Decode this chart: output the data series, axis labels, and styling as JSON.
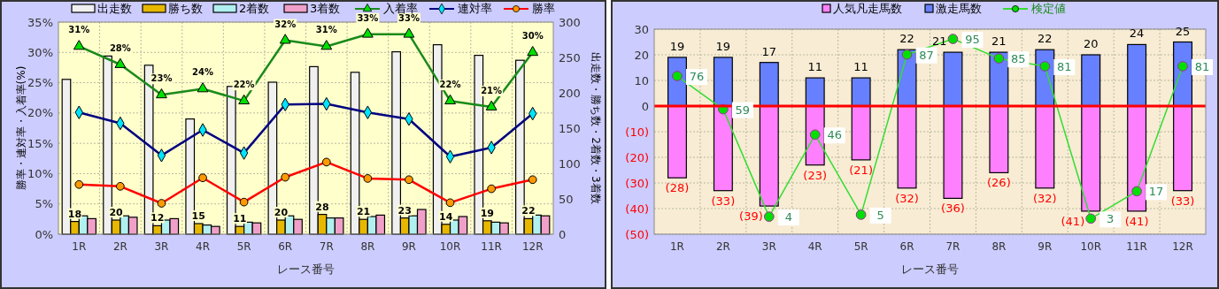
{
  "chart_data": [
    {
      "type": "bar",
      "categories": [
        "1R",
        "2R",
        "3R",
        "4R",
        "5R",
        "6R",
        "7R",
        "8R",
        "9R",
        "10R",
        "11R",
        "12R"
      ],
      "xlabel": "レース番号",
      "ylabel": "勝率・連対率・入着率(%)",
      "y2label": "出走数・勝ち数・2着数・3着数",
      "ylim": [
        0,
        35
      ],
      "yticks": [
        {
          "value": 0,
          "label": "0%"
        },
        {
          "value": 5,
          "label": "5%"
        },
        {
          "value": 10,
          "label": "10%"
        },
        {
          "value": 15,
          "label": "15%"
        },
        {
          "value": 20,
          "label": "20%"
        },
        {
          "value": 25,
          "label": "25%"
        },
        {
          "value": 30,
          "label": "30%"
        },
        {
          "value": 35,
          "label": "35%"
        }
      ],
      "y2lim": [
        0,
        300
      ],
      "y2ticks": [
        0,
        50,
        100,
        150,
        200,
        250,
        300
      ],
      "grid": true,
      "legend": "top",
      "series": [
        {
          "name": "出走数",
          "axis": "y2",
          "color": "#f0f0f0",
          "values": [
            219,
            252,
            239,
            163,
            209,
            215,
            237,
            229,
            258,
            268,
            253,
            246
          ]
        },
        {
          "name": "勝ち数",
          "axis": "y2",
          "color": "#e8b800",
          "values": [
            18,
            20,
            12,
            15,
            11,
            20,
            28,
            21,
            23,
            14,
            19,
            22
          ],
          "value_labels": [
            "18",
            "20",
            "12",
            "15",
            "11",
            "20",
            "28",
            "21",
            "23",
            "14",
            "19",
            "22"
          ]
        },
        {
          "name": "2着数",
          "axis": "y2",
          "color": "#b0f0f0",
          "values": [
            26,
            26,
            20,
            13,
            17,
            26,
            23,
            25,
            26,
            20,
            17,
            27
          ]
        },
        {
          "name": "3着数",
          "axis": "y2",
          "color": "#f0a0c8",
          "values": [
            22,
            24,
            22,
            11,
            16,
            21,
            23,
            27,
            35,
            25,
            16,
            26
          ]
        },
        {
          "name": "入着率",
          "type": "line",
          "color": "#1a8a1a",
          "marker": "triangle",
          "values": [
            31,
            28,
            23,
            24,
            22,
            32,
            31,
            33,
            33,
            22,
            21,
            30
          ],
          "value_labels": [
            "31%",
            "28%",
            "23%",
            "24%",
            "22%",
            "32%",
            "31%",
            "33%",
            "33%",
            "22%",
            "21%",
            "30%"
          ]
        },
        {
          "name": "連対率",
          "type": "line",
          "color": "#000080",
          "marker": "diamond",
          "values": [
            20.1,
            18.3,
            13.0,
            17.2,
            13.4,
            21.4,
            21.5,
            20.1,
            19.0,
            12.8,
            14.3,
            19.9
          ]
        },
        {
          "name": "勝率",
          "type": "line",
          "color": "#ff0000",
          "marker": "circle",
          "values": [
            8.2,
            7.9,
            5.1,
            9.3,
            5.3,
            9.4,
            11.9,
            9.2,
            9.0,
            5.2,
            7.5,
            9.0
          ]
        }
      ]
    },
    {
      "type": "bar",
      "categories": [
        "1R",
        "2R",
        "3R",
        "4R",
        "5R",
        "6R",
        "7R",
        "8R",
        "9R",
        "10R",
        "11R",
        "12R"
      ],
      "xlabel": "レース番号",
      "stacked": true,
      "ylim": [
        -50,
        30
      ],
      "yticks": [
        30,
        20,
        10,
        0,
        {
          "value": -10,
          "label": "(10)"
        },
        {
          "value": -20,
          "label": "(20)"
        },
        {
          "value": -30,
          "label": "(30)"
        },
        {
          "value": -40,
          "label": "(40)"
        },
        {
          "value": -50,
          "label": "(50)"
        }
      ],
      "y2lim": [
        -5,
        100
      ],
      "grid": true,
      "legend": "top",
      "ref_lines": [
        {
          "axis": "y",
          "value": 0,
          "color": "#ff0000"
        }
      ],
      "series": [
        {
          "name": "人気凡走馬数",
          "color": "#ff80ff",
          "values": [
            -28,
            -33,
            -39,
            -23,
            -21,
            -32,
            -36,
            -26,
            -32,
            -41,
            -41,
            -33
          ],
          "value_labels": [
            "(28)",
            "(33)",
            "(39)",
            "(23)",
            "(21)",
            "(32)",
            "(36)",
            "(26)",
            "(32)",
            "(41)",
            "(41)",
            "(33)"
          ]
        },
        {
          "name": "激走馬数",
          "color": "#6680ff",
          "values": [
            19,
            19,
            17,
            11,
            11,
            22,
            21,
            21,
            22,
            20,
            24,
            25
          ],
          "value_labels": [
            "19",
            "19",
            "17",
            "11",
            "11",
            "22",
            "21",
            "21",
            "22",
            "20",
            "24",
            "25"
          ]
        },
        {
          "name": "検定値",
          "type": "line",
          "axis": "y2",
          "color": "#33dd33",
          "marker": "circle",
          "values": [
            76,
            59,
            4,
            46,
            5,
            87,
            95,
            85,
            81,
            3,
            17,
            81
          ],
          "value_labels": [
            "76",
            "59",
            "4",
            "46",
            "5",
            "87",
            "95",
            "85",
            "81",
            "3",
            "17",
            "81"
          ]
        }
      ]
    }
  ]
}
